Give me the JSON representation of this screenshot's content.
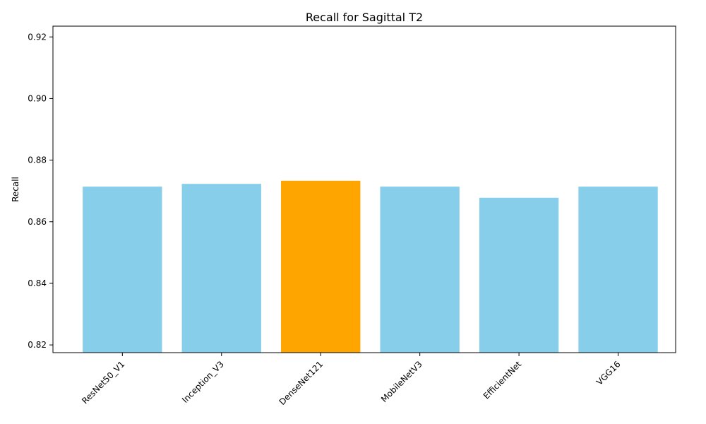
{
  "chart_data": {
    "type": "bar",
    "title": "Recall for Sagittal T2",
    "xlabel": "",
    "ylabel": "Recall",
    "categories": [
      "ResNet50_V1",
      "Inception_V3",
      "DenseNet121",
      "MobileNetV3",
      "EfficientNet",
      "VGG16"
    ],
    "values": [
      0.8714,
      0.8723,
      0.8733,
      0.8714,
      0.8678,
      0.8714
    ],
    "highlight_category": "DenseNet121",
    "ylim": [
      0.8175,
      0.9235
    ],
    "yticks": [
      0.82,
      0.84,
      0.86,
      0.88,
      0.9,
      0.92
    ],
    "ytick_labels": [
      "0.82",
      "0.84",
      "0.86",
      "0.88",
      "0.90",
      "0.92"
    ],
    "colors": {
      "default_bar": "#87CEEB",
      "highlight_bar": "#FFA500"
    },
    "grid": false,
    "legend": "none"
  }
}
